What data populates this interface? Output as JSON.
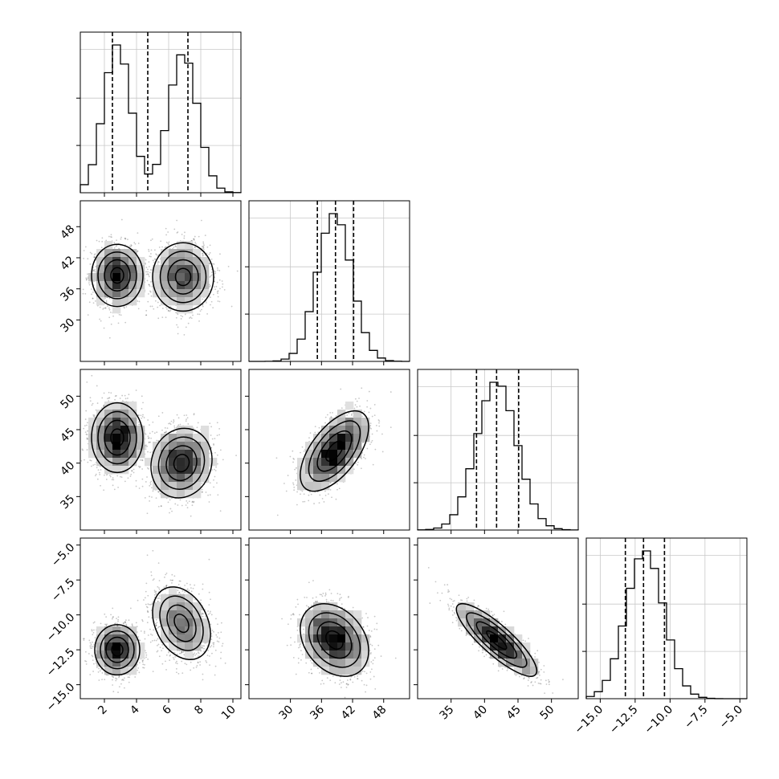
{
  "chart_data": {
    "type": "corner",
    "n_params": 4,
    "params": [
      {
        "range": [
          0.5,
          10.5
        ],
        "ticks": [
          2,
          4,
          6,
          8,
          10
        ],
        "tick_labels": [
          "2",
          "4",
          "6",
          "8",
          "10"
        ],
        "quantiles": [
          2.5,
          4.7,
          7.2
        ],
        "modes": [
          {
            "mean": 2.8,
            "sd": 0.85,
            "weight": 0.5
          },
          {
            "mean": 6.9,
            "sd": 0.9,
            "weight": 0.5
          }
        ]
      },
      {
        "range": [
          22,
          53
        ],
        "ticks": [
          30,
          36,
          42,
          48
        ],
        "tick_labels": [
          "30",
          "36",
          "42",
          "48"
        ],
        "quantiles": [
          35.2,
          38.7,
          42.2
        ],
        "modes": [
          {
            "mean": 38.5,
            "sd": 3.3,
            "weight": 1
          }
        ]
      },
      {
        "range": [
          30,
          54
        ],
        "ticks": [
          35,
          40,
          45,
          50
        ],
        "tick_labels": [
          "35",
          "40",
          "45",
          "50"
        ],
        "quantiles": [
          38.8,
          41.8,
          45.1
        ],
        "modes": [
          {
            "mean": 41.8,
            "sd": 3.0,
            "weight": 1
          }
        ]
      },
      {
        "range": [
          -16,
          -4.5
        ],
        "ticks": [
          -15.0,
          -12.5,
          -10.0,
          -7.5,
          -5.0
        ],
        "tick_labels": [
          "−15.0",
          "−12.5",
          "−10.0",
          "−7.5",
          "−5.0"
        ],
        "quantiles": [
          -13.2,
          -11.9,
          -10.4
        ],
        "modes": [
          {
            "mean": -11.8,
            "sd": 1.35,
            "weight": 1
          }
        ]
      }
    ],
    "hist_peaks": [
      [
        2.5,
        7
      ],
      [
        38.5
      ],
      [
        41.8
      ],
      [
        -12.3
      ]
    ],
    "clusters": [
      {
        "pair": [
          1,
          0
        ],
        "blobs": [
          {
            "c": [
              2.8,
              38.6
            ],
            "s": [
              0.8,
              3.0
            ],
            "rho": 0.0
          },
          {
            "c": [
              6.9,
              38.3
            ],
            "s": [
              0.95,
              3.3
            ],
            "rho": 0.0
          }
        ]
      },
      {
        "pair": [
          2,
          0
        ],
        "blobs": [
          {
            "c": [
              2.8,
              43.8
            ],
            "s": [
              0.8,
              2.6
            ],
            "rho": 0.0
          },
          {
            "c": [
              6.8,
              40.0
            ],
            "s": [
              0.95,
              2.6
            ],
            "rho": 0.1
          }
        ]
      },
      {
        "pair": [
          2,
          1
        ],
        "blobs": [
          {
            "c": [
              38.5,
              41.8
            ],
            "s": [
              3.3,
              3.0
            ],
            "rho": 0.6
          }
        ]
      },
      {
        "pair": [
          3,
          0
        ],
        "blobs": [
          {
            "c": [
              2.8,
              -12.5
            ],
            "s": [
              0.7,
              0.9
            ],
            "rho": 0.0
          },
          {
            "c": [
              6.8,
              -10.6
            ],
            "s": [
              0.9,
              1.3
            ],
            "rho": -0.3
          }
        ]
      },
      {
        "pair": [
          3,
          1
        ],
        "blobs": [
          {
            "c": [
              38.5,
              -11.8
            ],
            "s": [
              3.3,
              1.3
            ],
            "rho": -0.3
          }
        ]
      },
      {
        "pair": [
          3,
          2
        ],
        "blobs": [
          {
            "c": [
              41.8,
              -11.8
            ],
            "s": [
              3.0,
              1.3
            ],
            "rho": -0.85
          }
        ]
      }
    ],
    "grid": true,
    "xlabel": "",
    "ylabel": ""
  }
}
